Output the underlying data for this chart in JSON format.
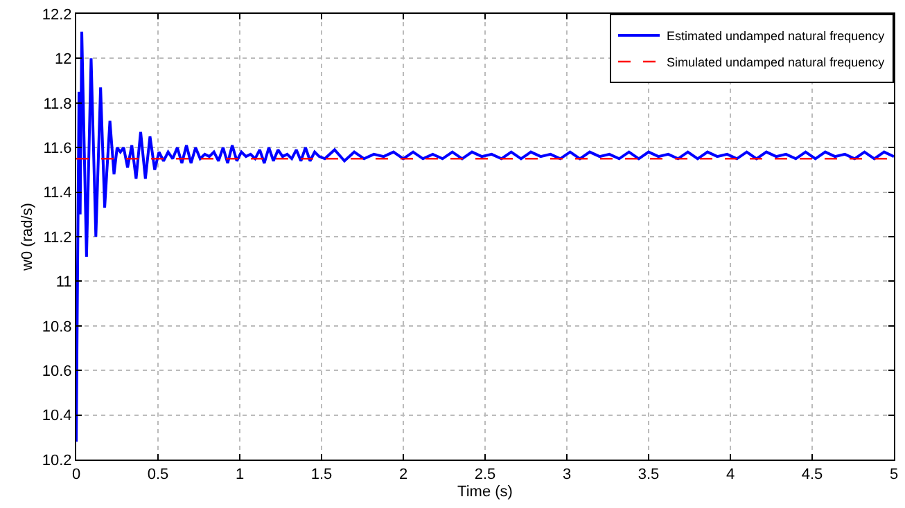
{
  "chart_data": {
    "type": "line",
    "xlabel": "Time (s)",
    "ylabel": "w0 (rad/s)",
    "xlim": [
      0,
      5
    ],
    "xticks": [
      0,
      0.5,
      1,
      1.5,
      2,
      2.5,
      3,
      3.5,
      4,
      4.5,
      5
    ],
    "ylim": [
      10.2,
      12.2
    ],
    "yticks": [
      10.2,
      10.4,
      10.6,
      10.8,
      11,
      11.2,
      11.4,
      11.6,
      11.8,
      12,
      12.2
    ],
    "grid": true,
    "legend": "top right",
    "series": [
      {
        "name": "Estimated undamped natural frequency",
        "color": "#0000ff",
        "line_style": "solid",
        "x": [
          0,
          0.017,
          0.024,
          0.034,
          0.063,
          0.091,
          0.12,
          0.149,
          0.174,
          0.206,
          0.231,
          0.25,
          0.27,
          0.29,
          0.314,
          0.34,
          0.366,
          0.394,
          0.423,
          0.451,
          0.48,
          0.506,
          0.534,
          0.562,
          0.59,
          0.618,
          0.646,
          0.674,
          0.702,
          0.73,
          0.758,
          0.786,
          0.814,
          0.842,
          0.87,
          0.898,
          0.926,
          0.954,
          0.982,
          1.01,
          1.038,
          1.066,
          1.094,
          1.122,
          1.15,
          1.178,
          1.206,
          1.234,
          1.262,
          1.29,
          1.318,
          1.346,
          1.374,
          1.402,
          1.43,
          1.458,
          1.486,
          1.52,
          1.58,
          1.64,
          1.7,
          1.76,
          1.82,
          1.88,
          1.94,
          2.0,
          2.06,
          2.12,
          2.18,
          2.24,
          2.3,
          2.36,
          2.42,
          2.48,
          2.54,
          2.6,
          2.66,
          2.72,
          2.78,
          2.84,
          2.9,
          2.96,
          3.02,
          3.08,
          3.14,
          3.2,
          3.26,
          3.32,
          3.38,
          3.44,
          3.5,
          3.56,
          3.62,
          3.68,
          3.74,
          3.8,
          3.86,
          3.92,
          3.98,
          4.04,
          4.1,
          4.16,
          4.22,
          4.28,
          4.34,
          4.4,
          4.46,
          4.52,
          4.58,
          4.64,
          4.7,
          4.76,
          4.82,
          4.88,
          4.94,
          5.0
        ],
        "values": [
          10.28,
          11.85,
          11.3,
          12.12,
          11.11,
          12.0,
          11.2,
          11.87,
          11.33,
          11.72,
          11.48,
          11.6,
          11.58,
          11.6,
          11.51,
          11.61,
          11.46,
          11.67,
          11.46,
          11.65,
          11.5,
          11.58,
          11.54,
          11.58,
          11.55,
          11.6,
          11.53,
          11.61,
          11.53,
          11.6,
          11.55,
          11.57,
          11.56,
          11.58,
          11.54,
          11.6,
          11.53,
          11.61,
          11.54,
          11.58,
          11.56,
          11.57,
          11.55,
          11.59,
          11.53,
          11.6,
          11.54,
          11.59,
          11.56,
          11.57,
          11.55,
          11.59,
          11.54,
          11.6,
          11.54,
          11.58,
          11.56,
          11.55,
          11.59,
          11.54,
          11.58,
          11.55,
          11.57,
          11.56,
          11.58,
          11.55,
          11.58,
          11.55,
          11.57,
          11.55,
          11.58,
          11.55,
          11.58,
          11.56,
          11.57,
          11.55,
          11.58,
          11.55,
          11.58,
          11.56,
          11.57,
          11.55,
          11.58,
          11.55,
          11.58,
          11.56,
          11.57,
          11.55,
          11.58,
          11.55,
          11.58,
          11.56,
          11.57,
          11.55,
          11.58,
          11.55,
          11.58,
          11.56,
          11.57,
          11.55,
          11.58,
          11.55,
          11.58,
          11.56,
          11.57,
          11.55,
          11.58,
          11.55,
          11.58,
          11.56,
          11.57,
          11.55,
          11.58,
          11.55,
          11.58,
          11.56
        ]
      },
      {
        "name": "Simulated undamped natural frequency",
        "color": "#ff0000",
        "line_style": "dashed",
        "x": [
          0,
          5
        ],
        "values": [
          11.55,
          11.55
        ]
      }
    ]
  }
}
